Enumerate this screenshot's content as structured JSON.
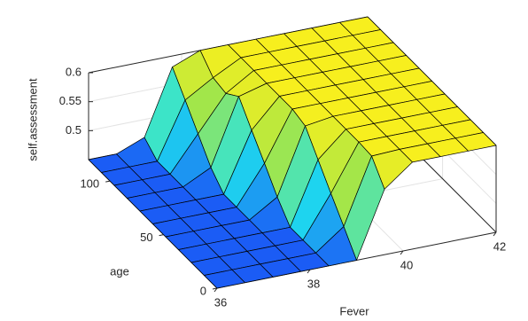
{
  "chart_data": {
    "type": "surface",
    "x_label": "Fever",
    "y_label": "age",
    "z_label": "self.assessment",
    "x": [
      36,
      36.6,
      37.2,
      37.8,
      38.4,
      39,
      39.6,
      40.2,
      40.8,
      41.4,
      42
    ],
    "y": [
      0,
      12,
      24,
      36,
      48,
      60,
      72,
      84,
      96,
      108,
      120
    ],
    "z": [
      [
        0.45,
        0.45,
        0.45,
        0.45,
        0.45,
        0.45,
        0.563,
        0.6,
        0.6,
        0.6,
        0.6
      ],
      [
        0.45,
        0.45,
        0.45,
        0.45,
        0.45,
        0.486,
        0.598,
        0.6,
        0.6,
        0.6,
        0.6
      ],
      [
        0.45,
        0.45,
        0.45,
        0.45,
        0.45,
        0.521,
        0.6,
        0.6,
        0.6,
        0.6,
        0.6
      ],
      [
        0.45,
        0.45,
        0.45,
        0.45,
        0.45,
        0.557,
        0.6,
        0.6,
        0.6,
        0.6,
        0.6
      ],
      [
        0.45,
        0.45,
        0.45,
        0.45,
        0.48,
        0.593,
        0.6,
        0.6,
        0.6,
        0.6,
        0.6
      ],
      [
        0.45,
        0.45,
        0.45,
        0.45,
        0.516,
        0.6,
        0.6,
        0.6,
        0.6,
        0.6,
        0.6
      ],
      [
        0.45,
        0.45,
        0.45,
        0.45,
        0.551,
        0.6,
        0.6,
        0.6,
        0.6,
        0.6,
        0.6
      ],
      [
        0.45,
        0.45,
        0.45,
        0.474,
        0.587,
        0.6,
        0.6,
        0.6,
        0.6,
        0.6,
        0.6
      ],
      [
        0.45,
        0.45,
        0.45,
        0.51,
        0.57,
        0.6,
        0.6,
        0.6,
        0.6,
        0.6,
        0.6
      ],
      [
        0.45,
        0.45,
        0.45,
        0.546,
        0.575,
        0.6,
        0.6,
        0.6,
        0.6,
        0.6,
        0.6
      ],
      [
        0.45,
        0.45,
        0.469,
        0.581,
        0.6,
        0.6,
        0.6,
        0.6,
        0.6,
        0.6,
        0.6
      ]
    ],
    "xlim": [
      36,
      42
    ],
    "ylim": [
      0,
      120
    ],
    "zlim": [
      0.45,
      0.6
    ],
    "xticks": [
      36,
      38,
      40,
      42
    ],
    "yticks": [
      0,
      50,
      100
    ],
    "zticks": [
      0.5,
      0.55,
      0.6
    ],
    "colormap": [
      "#1b5cf5",
      "#1ee3ee",
      "#a2e64a",
      "#f7ef1e"
    ],
    "grid": true
  }
}
